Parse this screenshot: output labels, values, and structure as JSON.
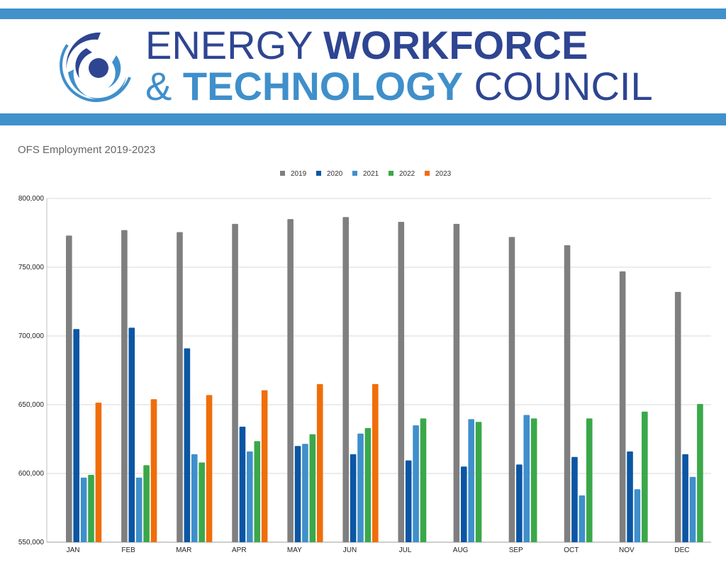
{
  "header": {
    "word_energy": "ENERGY",
    "word_workforce": "WORKFORCE",
    "word_amp": "&",
    "word_technology": "TECHNOLOGY",
    "word_council": "COUNCIL"
  },
  "colors": {
    "band": "#4191cb",
    "brand_dark": "#2e4592",
    "brand_light": "#3f8fcb"
  },
  "chart_data": {
    "type": "bar",
    "title": "OFS Employment 2019-2023",
    "xlabel": "",
    "ylabel": "",
    "categories": [
      "JAN",
      "FEB",
      "MAR",
      "APR",
      "MAY",
      "JUN",
      "JUL",
      "AUG",
      "SEP",
      "OCT",
      "NOV",
      "DEC"
    ],
    "ylim": [
      550000,
      800000
    ],
    "yticks": [
      550000,
      600000,
      650000,
      700000,
      750000,
      800000
    ],
    "ytick_labels": [
      "550,000",
      "600,000",
      "650,000",
      "700,000",
      "750,000",
      "800,000"
    ],
    "grid": true,
    "legend_position": "top",
    "series": [
      {
        "name": "2019",
        "color": "#7f7f7f",
        "values": [
          773000,
          777000,
          775500,
          781500,
          785000,
          786500,
          783000,
          781500,
          772000,
          766000,
          747000,
          732000
        ]
      },
      {
        "name": "2020",
        "color": "#0b56a4",
        "values": [
          705000,
          706000,
          691000,
          634000,
          620000,
          614000,
          609500,
          605000,
          606500,
          612000,
          616000,
          614000
        ]
      },
      {
        "name": "2021",
        "color": "#3f8fcb",
        "values": [
          597000,
          597000,
          614000,
          616000,
          621500,
          629000,
          635000,
          639500,
          642500,
          584000,
          588500,
          597500
        ]
      },
      {
        "name": "2022",
        "color": "#3aa84a",
        "values": [
          599000,
          606000,
          608000,
          623500,
          628500,
          633000,
          640000,
          637500,
          640000,
          640000,
          645000,
          650500
        ]
      },
      {
        "name": "2023",
        "color": "#f06e0a",
        "values": [
          651500,
          654000,
          657000,
          660500,
          665000,
          665000,
          null,
          null,
          null,
          null,
          null,
          null
        ]
      }
    ]
  }
}
